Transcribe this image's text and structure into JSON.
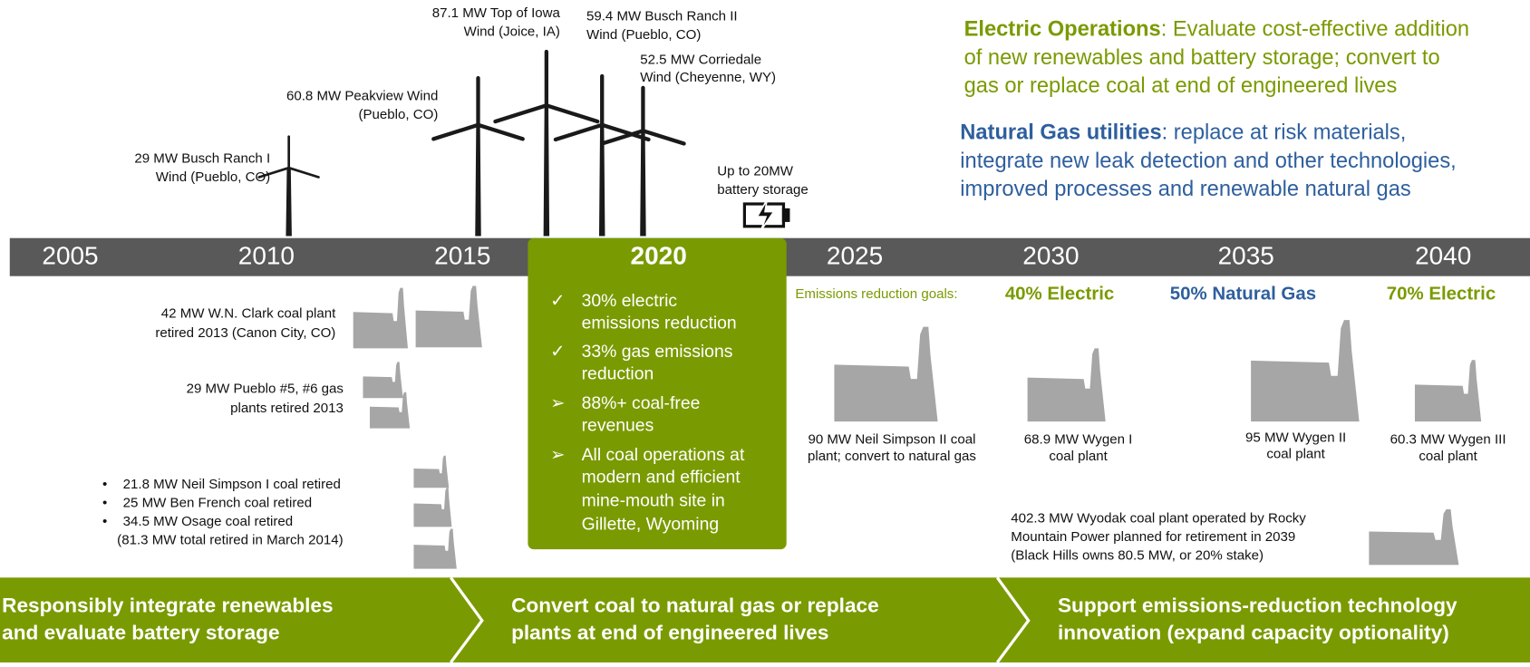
{
  "timeline": {
    "years": [
      "2005",
      "2010",
      "2015",
      "2020",
      "2025",
      "2030",
      "2035",
      "2040"
    ]
  },
  "wind_projects": [
    {
      "lines": [
        "29 MW Busch Ranch I",
        "Wind (Pueblo, CO)"
      ]
    },
    {
      "lines": [
        "60.8 MW Peakview Wind",
        "(Pueblo, CO)"
      ]
    },
    {
      "lines": [
        "87.1 MW Top of Iowa",
        "Wind (Joice, IA)"
      ]
    },
    {
      "lines": [
        "59.4 MW Busch Ranch II",
        "Wind (Pueblo, CO)"
      ]
    },
    {
      "lines": [
        "52.5 MW Corriedale",
        "Wind (Cheyenne, WY)"
      ]
    }
  ],
  "battery": {
    "lines": [
      "Up to 20MW",
      "battery storage"
    ]
  },
  "strategy": [
    {
      "heading": "Electric Operations",
      "lines": [
        ": Evaluate cost-effective addition",
        "of new renewables and battery storage; convert to",
        "gas or replace coal at end of engineered lives"
      ]
    },
    {
      "heading": "Natural Gas utilities",
      "lines": [
        ": replace at risk materials,",
        "integrate new leak detection and other technologies,",
        "improved processes and renewable natural gas"
      ]
    }
  ],
  "highlight": {
    "year": "2020",
    "items": [
      {
        "marker": "✓",
        "lines": [
          "30% electric",
          "emissions reduction"
        ]
      },
      {
        "marker": "✓",
        "lines": [
          "33% gas emissions",
          "reduction"
        ]
      },
      {
        "marker": "➢",
        "lines": [
          "88%+ coal-free",
          "revenues"
        ]
      },
      {
        "marker": "➢",
        "lines": [
          "All coal operations at",
          "modern and efficient",
          "mine-mouth site in",
          "Gillette, Wyoming"
        ]
      }
    ]
  },
  "emissions_goals": {
    "label": "Emissions reduction goals:",
    "goals": [
      "40% Electric",
      "50% Natural Gas",
      "70% Electric"
    ]
  },
  "retired": [
    {
      "lines": [
        "42 MW W.N. Clark coal plant",
        "retired 2013 (Canon City, CO)"
      ]
    },
    {
      "lines": [
        "29 MW Pueblo #5, #6 gas",
        "plants retired 2013"
      ]
    }
  ],
  "retired_2014": {
    "bullet": "•",
    "items": [
      "21.8 MW Neil Simpson I coal retired",
      "25 MW Ben French coal retired",
      "34.5 MW Osage coal retired"
    ],
    "note": "(81.3 MW total retired in March 2014)"
  },
  "planned": [
    {
      "lines": [
        "90 MW Neil Simpson II coal",
        "plant; convert to natural gas"
      ]
    },
    {
      "lines": [
        "68.9 MW Wygen I",
        "coal plant"
      ]
    },
    {
      "lines": [
        "95 MW Wygen II",
        "coal plant"
      ]
    },
    {
      "lines": [
        "60.3 MW Wygen III",
        "coal plant"
      ]
    },
    {
      "lines": [
        "402.3 MW Wyodak coal plant operated by Rocky",
        "Mountain Power planned for retirement in 2039",
        "(Black Hills owns 80.5 MW, or 20% stake)"
      ]
    }
  ],
  "phases": [
    {
      "lines": [
        "Responsibly integrate renewables",
        "and evaluate battery storage"
      ]
    },
    {
      "lines": [
        "Convert coal to natural gas or replace",
        "plants at end of engineered lives"
      ]
    },
    {
      "lines": [
        "Support emissions-reduction technology",
        "innovation (expand capacity optionality)"
      ]
    }
  ]
}
